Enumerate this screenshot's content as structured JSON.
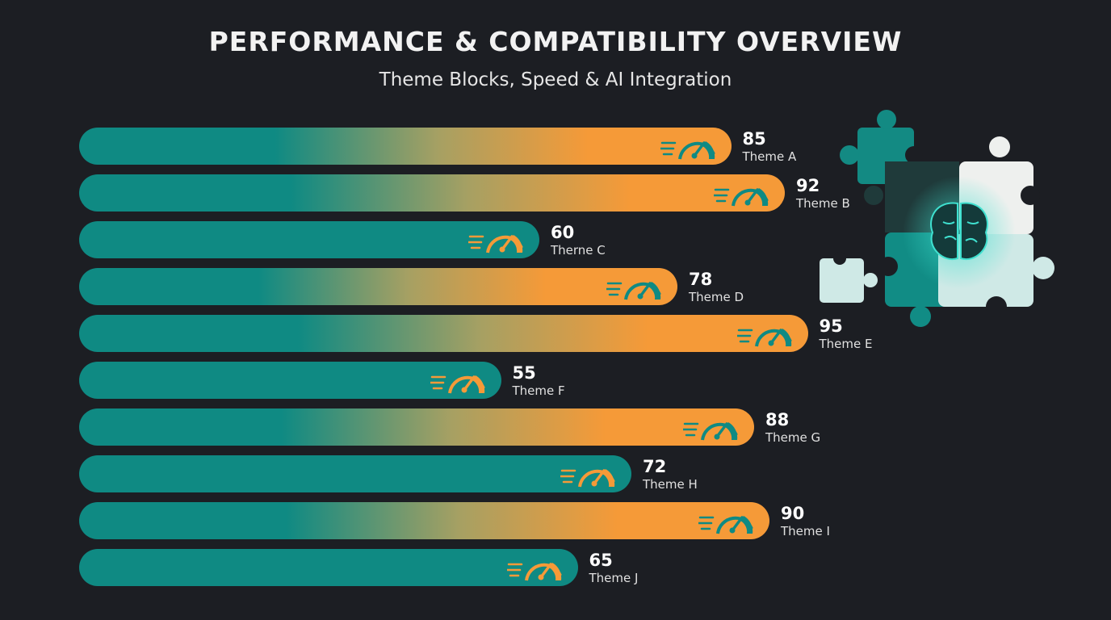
{
  "chart_data": {
    "type": "bar",
    "orientation": "horizontal",
    "title": "PERFORMANCE & COMPATIBILITY OVERVIEW",
    "subtitle": "Theme Blocks, Speed & AI Integration",
    "categories": [
      "Theme A",
      "Theme B",
      "Therne C",
      "Theme D",
      "Theme E",
      "Theme F",
      "Theme G",
      "Theme H",
      "Theme I",
      "Theme J"
    ],
    "values": [
      85,
      92,
      60,
      78,
      95,
      55,
      88,
      72,
      90,
      65
    ],
    "xlim": [
      0,
      100
    ],
    "grid": false,
    "legend": "none",
    "colors": {
      "teal": "#0f8a83",
      "orange": "#f59a38",
      "background": "#1c1e23"
    },
    "icons": {
      "bar_end": "speedometer-icon",
      "illustration": "puzzle-brain-icon"
    }
  }
}
